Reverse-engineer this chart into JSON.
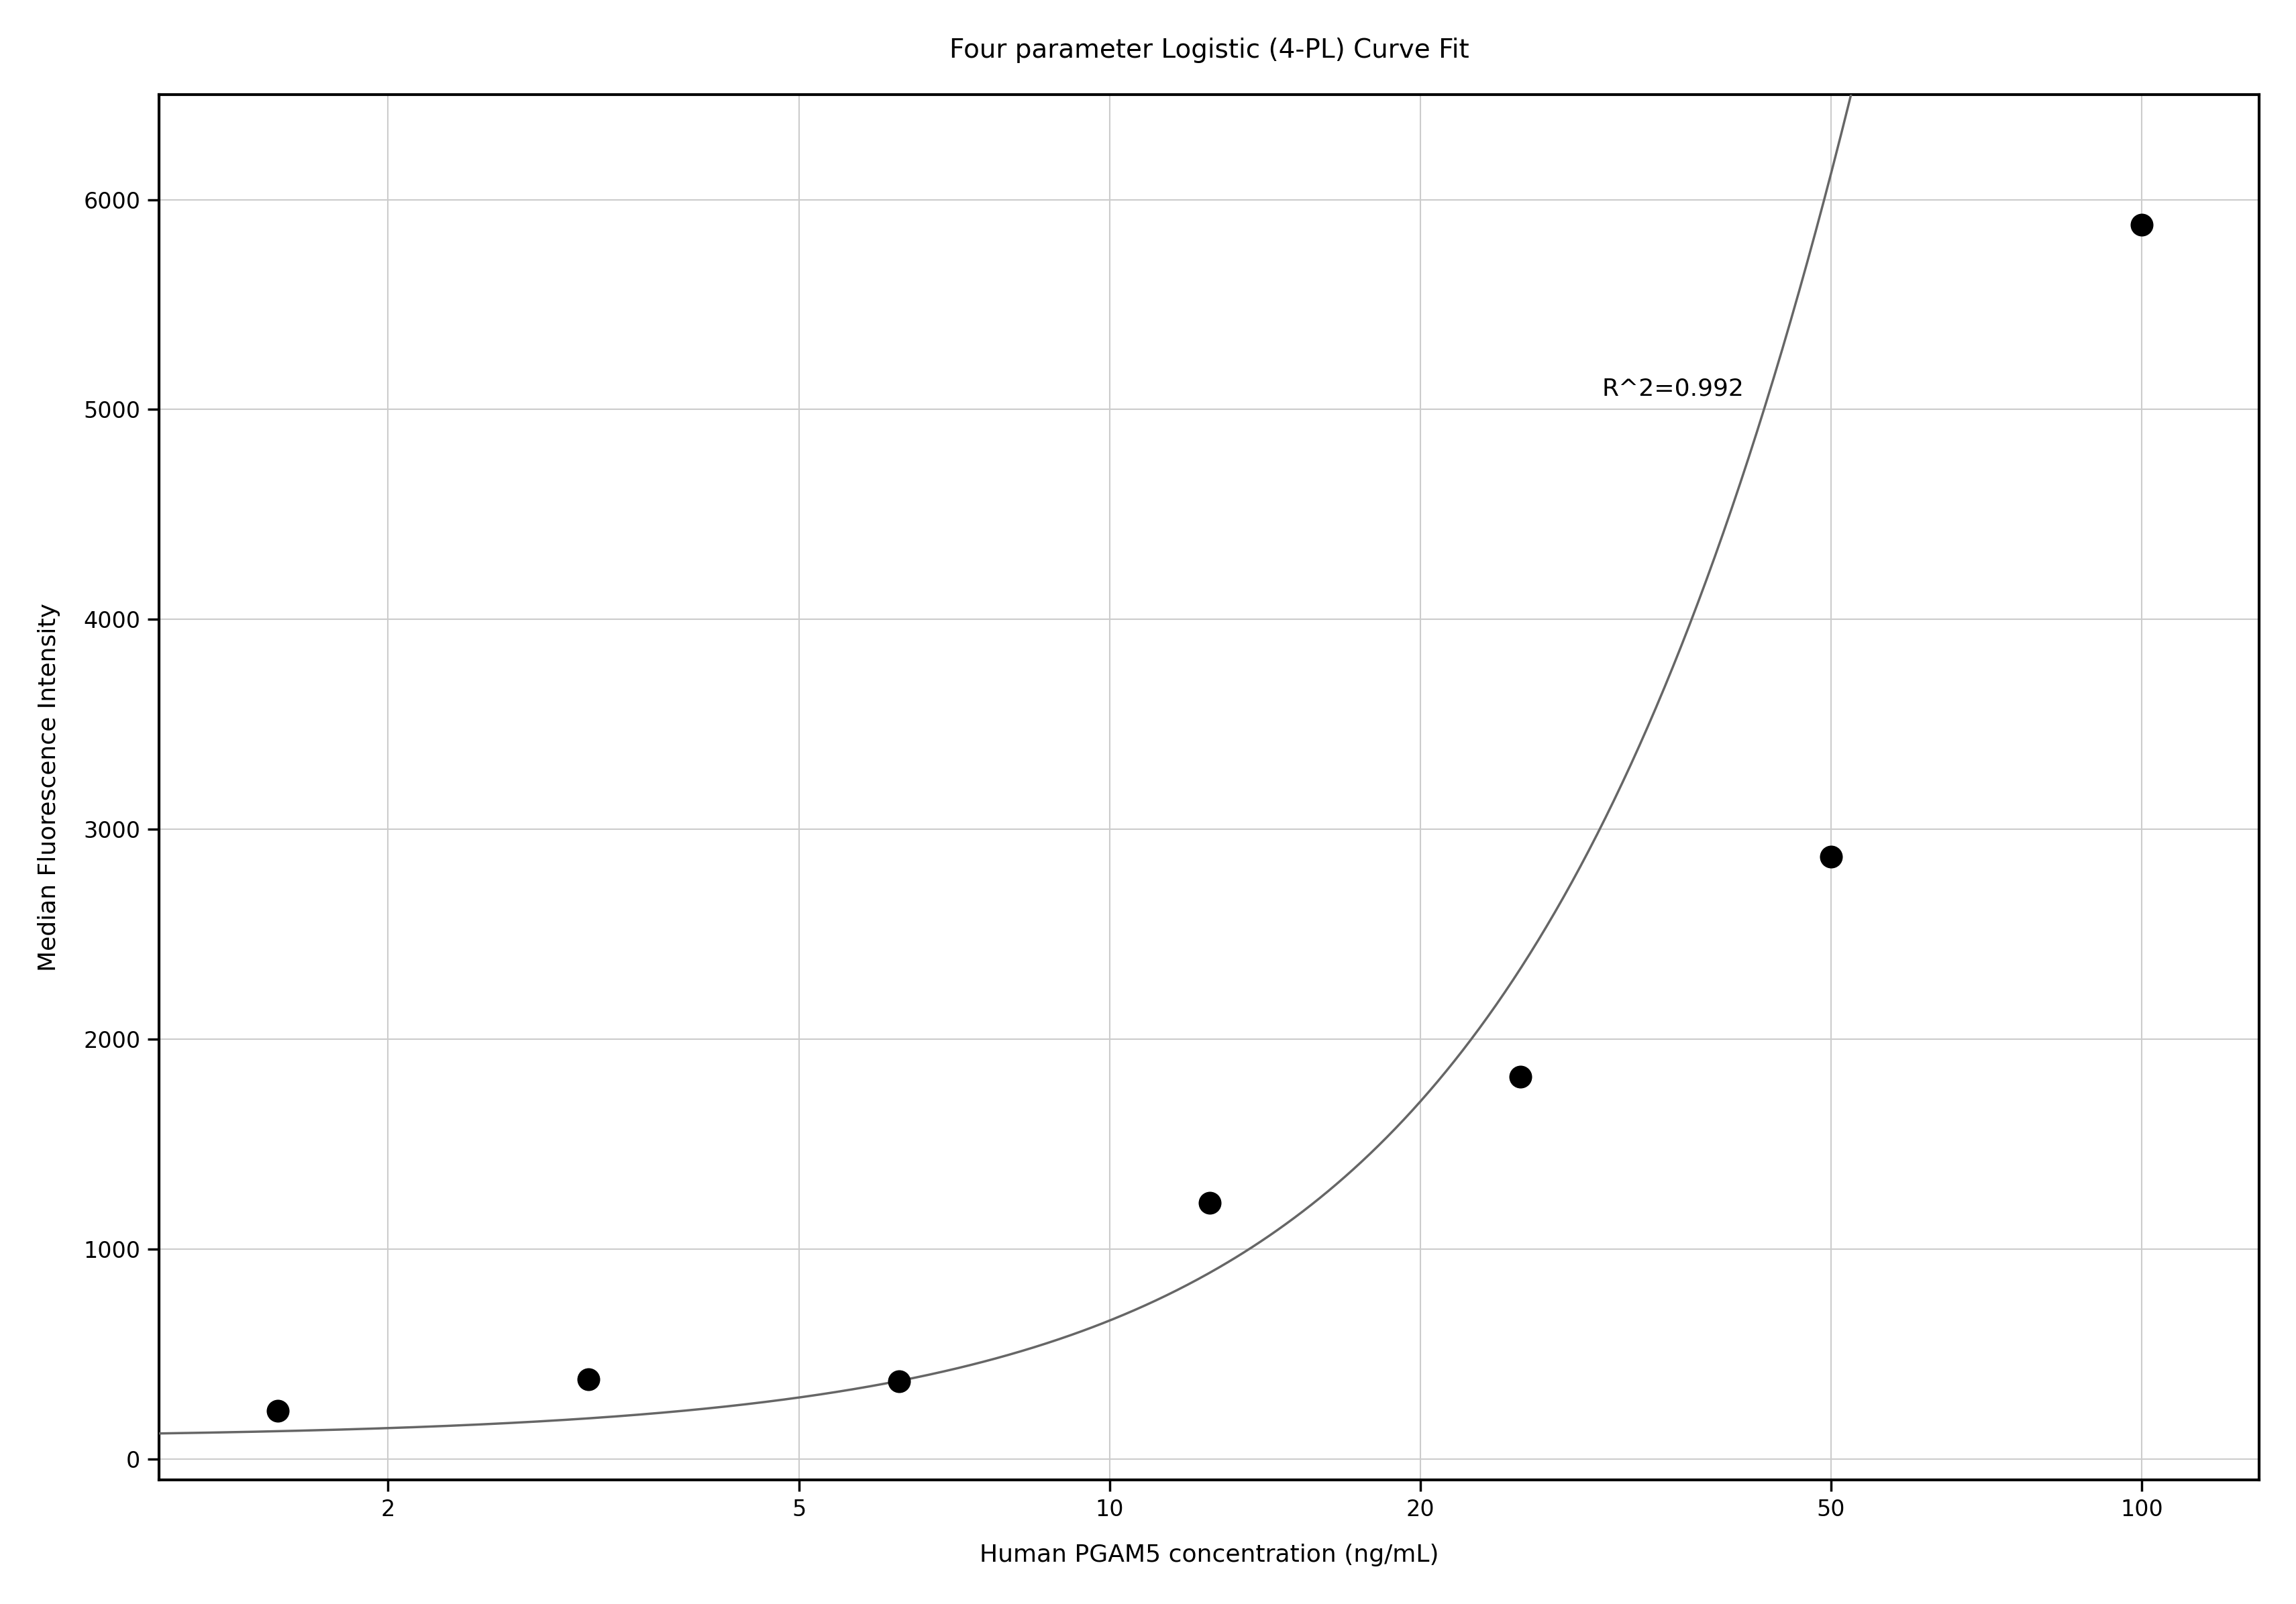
{
  "title": "Four parameter Logistic (4-PL) Curve Fit",
  "xlabel": "Human PGAM5 concentration (ng/mL)",
  "ylabel": "Median Fluorescence Intensity",
  "scatter_x": [
    1.5625,
    3.125,
    6.25,
    12.5,
    25,
    50,
    100
  ],
  "scatter_y": [
    230,
    380,
    370,
    1220,
    1820,
    2870,
    5880
  ],
  "r_squared_text": "R^2=0.992",
  "r_squared_x_data": 30,
  "r_squared_y_data": 5100,
  "xscale": "log",
  "xlim": [
    1.2,
    130
  ],
  "ylim": [
    -100,
    6500
  ],
  "yticks": [
    0,
    1000,
    2000,
    3000,
    4000,
    5000,
    6000
  ],
  "xticks": [
    2,
    5,
    10,
    20,
    50,
    100
  ],
  "4pl_A": 100,
  "4pl_B": 1.55,
  "4pl_C": 180,
  "4pl_D": 50000,
  "curve_color": "#666666",
  "scatter_color": "#000000",
  "grid_color": "#cccccc",
  "background_color": "#ffffff",
  "title_fontsize": 28,
  "label_fontsize": 26,
  "tick_fontsize": 24,
  "annotation_fontsize": 26,
  "scatter_size": 600,
  "line_width": 2.5,
  "spine_linewidth": 3.0
}
